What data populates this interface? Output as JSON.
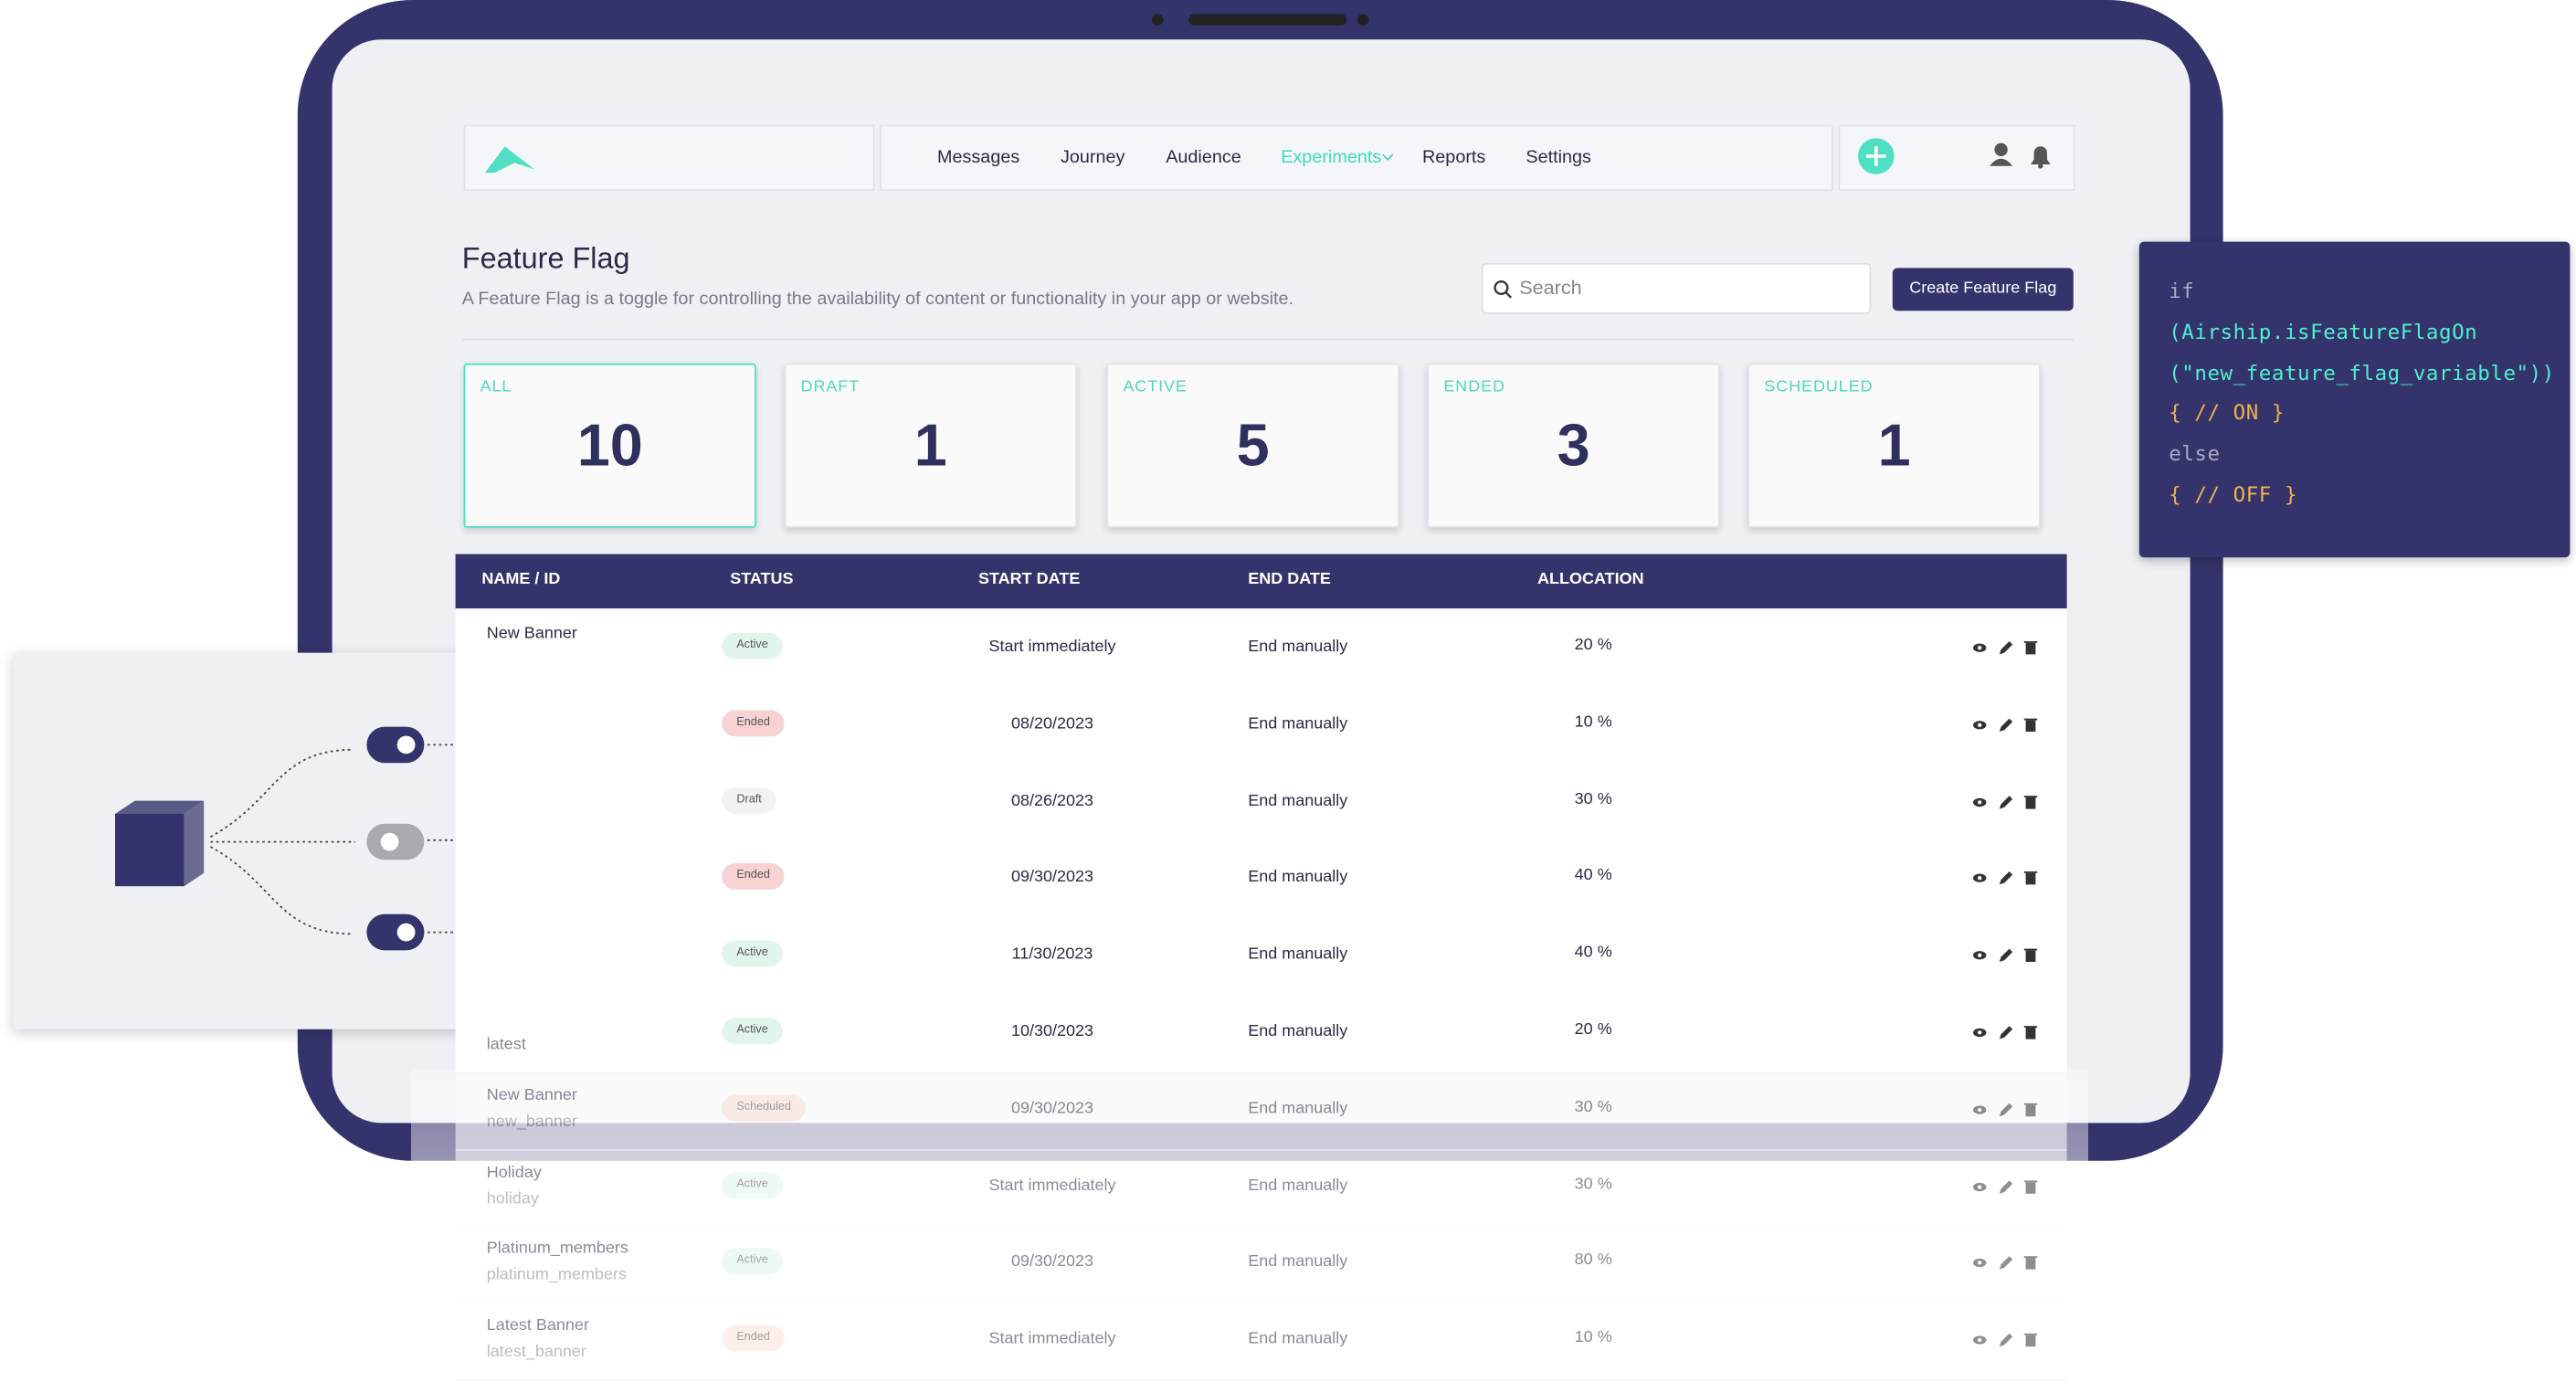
{
  "nav": {
    "items": [
      "Messages",
      "Journey",
      "Audience",
      "Experiments",
      "Reports",
      "Settings"
    ],
    "active_index": 3
  },
  "header": {
    "title": "Feature Flag",
    "description": "A Feature Flag is a toggle for controlling the availability of content or functionality in your app or website.",
    "search_placeholder": "Search",
    "create_button": "Create Feature Flag"
  },
  "stats": [
    {
      "label": "ALL",
      "count": 10
    },
    {
      "label": "DRAFT",
      "count": 1
    },
    {
      "label": "ACTIVE",
      "count": 5
    },
    {
      "label": "ENDED",
      "count": 3
    },
    {
      "label": "SCHEDULED",
      "count": 1
    }
  ],
  "table": {
    "columns": [
      "NAME / ID",
      "STATUS",
      "START DATE",
      "END DATE",
      "ALLOCATION"
    ],
    "rows": [
      {
        "name": "New Banner",
        "id": null,
        "status": "Active",
        "status_color": "#e2f5ea",
        "start": "Start immediately",
        "end": "End manually",
        "allocation": "20 %"
      },
      {
        "name": null,
        "id": null,
        "status": "Ended",
        "status_color": "#f7d2d2",
        "start": "08/20/2023",
        "end": "End manually",
        "allocation": "10 %"
      },
      {
        "name": null,
        "id": null,
        "status": "Draft",
        "status_color": "#f2f2f5",
        "start": "08/26/2023",
        "end": "End manually",
        "allocation": "30 %"
      },
      {
        "name": null,
        "id": null,
        "status": "Ended",
        "status_color": "#f7d2d2",
        "start": "09/30/2023",
        "end": "End manually",
        "allocation": "40 %"
      },
      {
        "name": null,
        "id": null,
        "status": "Active",
        "status_color": "#e2f5ea",
        "start": "11/30/2023",
        "end": "End manually",
        "allocation": "40 %"
      },
      {
        "name": null,
        "id": "latest",
        "status": "Active",
        "status_color": "#e2f5ea",
        "start": "10/30/2023",
        "end": "End manually",
        "allocation": "20 %"
      },
      {
        "name": "New Banner",
        "id": "new_banner",
        "status": "Scheduled",
        "status_color": "#fbe3d8",
        "start": "09/30/2023",
        "end": "End manually",
        "allocation": "30 %"
      },
      {
        "name": "Holiday",
        "id": "holiday",
        "status": "Active",
        "status_color": "#e2f5ea",
        "start": "Start immediately",
        "end": "End manually",
        "allocation": "30 %"
      },
      {
        "name": "Platinum_members",
        "id": "platinum_members",
        "status": "Active",
        "status_color": "#e2f5ea",
        "start": "09/30/2023",
        "end": "End manually",
        "allocation": "80 %"
      },
      {
        "name": "Latest Banner",
        "id": "latest_banner",
        "status": "Ended",
        "status_color": "#fbe3d8",
        "start": "Start immediately",
        "end": "End manually",
        "allocation": "10 %"
      }
    ]
  },
  "code": {
    "lines": [
      "if",
      "(Airship.isFeatureFlagOn",
      "(\"new_feature_flag_variable\"))",
      "{ // ON }",
      "else",
      "{ // OFF }"
    ],
    "line_colors": [
      "#aaa9c4",
      "#4ff0cf",
      "#4ff0cf",
      "#f0b24f",
      "#aaa9c4",
      "#f0b24f"
    ]
  }
}
